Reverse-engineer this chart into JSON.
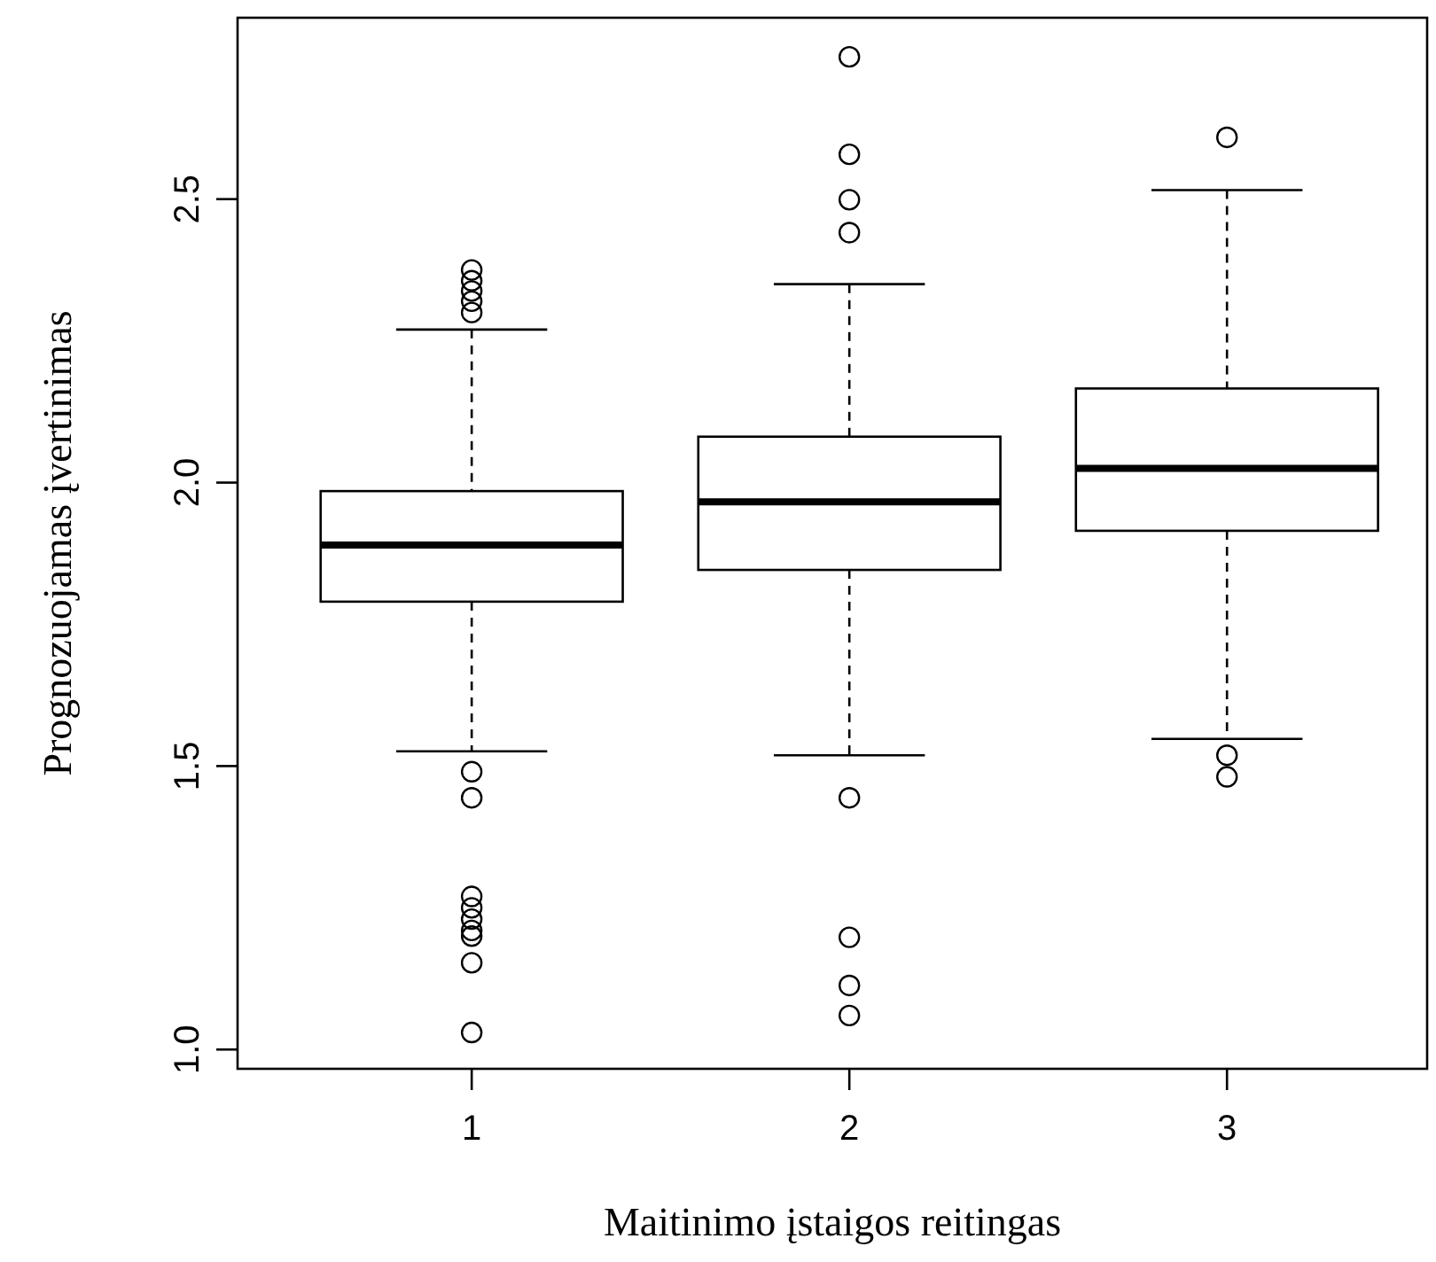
{
  "chart_data": {
    "type": "box",
    "xlabel": "Maitinimo įstaigos reitingas",
    "ylabel": "Prognozuojamas įvertinimas",
    "categories": [
      "1",
      "2",
      "3"
    ],
    "boxes": [
      {
        "low": 1.526,
        "q1": 1.79,
        "median": 1.89,
        "q3": 1.985,
        "high": 2.27,
        "outliers": [
          2.375,
          2.356,
          2.338,
          2.32,
          2.3,
          1.49,
          1.444,
          1.27,
          1.25,
          1.23,
          1.21,
          1.2,
          1.153,
          1.03
        ]
      },
      {
        "low": 1.519,
        "q1": 1.846,
        "median": 1.966,
        "q3": 2.081,
        "high": 2.35,
        "outliers": [
          2.751,
          2.579,
          2.499,
          2.441,
          1.444,
          1.198,
          1.113,
          1.06
        ]
      },
      {
        "low": 1.548,
        "q1": 1.915,
        "median": 2.025,
        "q3": 2.166,
        "high": 2.516,
        "outliers": [
          2.609,
          1.519,
          1.481
        ]
      }
    ],
    "ylim": [
      0.966,
      2.82
    ],
    "yticks": [
      {
        "value": 1,
        "label": "1.0"
      },
      1.5,
      {
        "value": 2,
        "label": "2.0"
      },
      2.5
    ],
    "grid": false
  }
}
